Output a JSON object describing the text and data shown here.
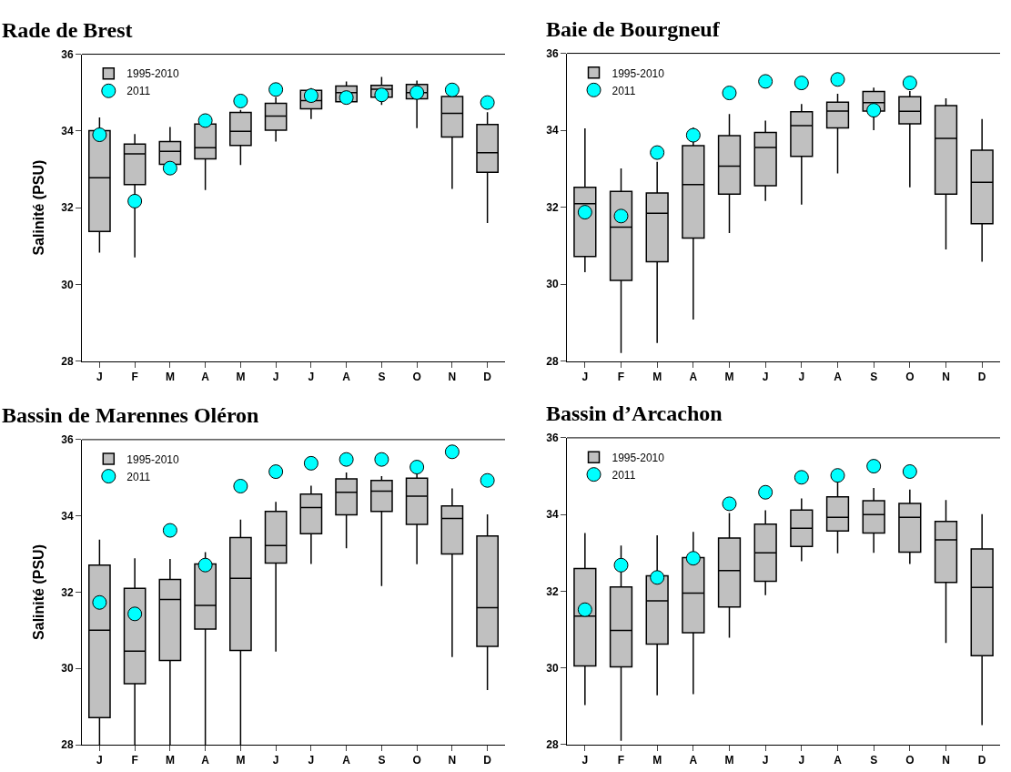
{
  "chart_data": [
    {
      "type": "box",
      "title": "Rade de Brest",
      "ylabel": "Salinité (PSU)",
      "categories": [
        "J",
        "F",
        "M",
        "A",
        "M",
        "J",
        "J",
        "A",
        "S",
        "O",
        "N",
        "D"
      ],
      "ylim": [
        28,
        36
      ],
      "yticks": [
        28,
        30,
        32,
        34,
        36
      ],
      "legend": "top left",
      "series": [
        {
          "name": "1995-2010",
          "color": "#c0c0c0",
          "boxes": [
            {
              "low": 30.83,
              "q1": 31.38,
              "median": 32.78,
              "q3": 34.01,
              "high": 34.35
            },
            {
              "low": 30.7,
              "q1": 32.6,
              "median": 33.4,
              "q3": 33.66,
              "high": 33.92
            },
            {
              "low": 33.13,
              "q1": 33.13,
              "median": 33.47,
              "q3": 33.72,
              "high": 34.1
            },
            {
              "low": 32.46,
              "q1": 33.27,
              "median": 33.56,
              "q3": 34.18,
              "high": 34.27
            },
            {
              "low": 33.11,
              "q1": 33.62,
              "median": 33.99,
              "q3": 34.48,
              "high": 34.55
            },
            {
              "low": 33.72,
              "q1": 34.02,
              "median": 34.39,
              "q3": 34.72,
              "high": 34.88
            },
            {
              "low": 34.31,
              "q1": 34.58,
              "median": 34.79,
              "q3": 35.06,
              "high": 35.12
            },
            {
              "low": 34.76,
              "q1": 34.76,
              "median": 35.0,
              "q3": 35.17,
              "high": 35.29
            },
            {
              "low": 34.68,
              "q1": 34.88,
              "median": 35.09,
              "q3": 35.19,
              "high": 35.41
            },
            {
              "low": 34.07,
              "q1": 34.84,
              "median": 35.0,
              "q3": 35.21,
              "high": 35.31
            },
            {
              "low": 32.49,
              "q1": 33.84,
              "median": 34.46,
              "q3": 34.9,
              "high": 34.9
            },
            {
              "low": 31.6,
              "q1": 32.92,
              "median": 33.43,
              "q3": 34.17,
              "high": 34.49
            }
          ]
        },
        {
          "name": "2011",
          "type": "scatter",
          "marker": "circle",
          "color": "#00ffff",
          "values": [
            33.9,
            32.17,
            33.03,
            34.27,
            34.78,
            35.08,
            34.92,
            34.87,
            34.94,
            35.0,
            35.07,
            34.74
          ]
        }
      ]
    },
    {
      "type": "box",
      "title": "Baie de Bourgneuf",
      "categories": [
        "J",
        "F",
        "M",
        "A",
        "M",
        "J",
        "J",
        "A",
        "S",
        "O",
        "N",
        "D"
      ],
      "ylim": [
        28,
        36
      ],
      "yticks": [
        28,
        30,
        32,
        34,
        36
      ],
      "legend": "top left",
      "series": [
        {
          "name": "1995-2010",
          "color": "#c0c0c0",
          "boxes": [
            {
              "low": 30.31,
              "q1": 30.72,
              "median": 32.09,
              "q3": 32.52,
              "high": 34.05
            },
            {
              "low": 28.21,
              "q1": 30.1,
              "median": 31.48,
              "q3": 32.41,
              "high": 33.01
            },
            {
              "low": 28.47,
              "q1": 30.58,
              "median": 31.84,
              "q3": 32.37,
              "high": 33.18
            },
            {
              "low": 29.08,
              "q1": 31.2,
              "median": 32.59,
              "q3": 33.6,
              "high": 34.07
            },
            {
              "low": 31.33,
              "q1": 32.34,
              "median": 33.07,
              "q3": 33.86,
              "high": 34.42
            },
            {
              "low": 32.16,
              "q1": 32.56,
              "median": 33.55,
              "q3": 33.94,
              "high": 34.25
            },
            {
              "low": 32.07,
              "q1": 33.32,
              "median": 34.12,
              "q3": 34.48,
              "high": 34.68
            },
            {
              "low": 32.88,
              "q1": 34.06,
              "median": 34.5,
              "q3": 34.73,
              "high": 34.95
            },
            {
              "low": 34.0,
              "q1": 34.5,
              "median": 34.72,
              "q3": 35.01,
              "high": 35.11
            },
            {
              "low": 32.52,
              "q1": 34.17,
              "median": 34.49,
              "q3": 34.87,
              "high": 35.02
            },
            {
              "low": 30.9,
              "q1": 32.34,
              "median": 33.79,
              "q3": 34.64,
              "high": 34.83
            },
            {
              "low": 30.58,
              "q1": 31.57,
              "median": 32.65,
              "q3": 33.48,
              "high": 34.29
            }
          ]
        },
        {
          "name": "2011",
          "type": "scatter",
          "marker": "circle",
          "color": "#00ffff",
          "values": [
            31.87,
            31.77,
            33.42,
            33.87,
            34.97,
            35.27,
            35.23,
            35.32,
            34.52,
            35.23,
            null,
            null
          ]
        }
      ]
    },
    {
      "type": "box",
      "title": "Bassin de Marennes Oléron",
      "ylabel": "Salinité (PSU)",
      "categories": [
        "J",
        "F",
        "M",
        "A",
        "M",
        "J",
        "J",
        "A",
        "S",
        "O",
        "N",
        "D"
      ],
      "ylim": [
        28,
        36
      ],
      "yticks": [
        28,
        30,
        32,
        34,
        36
      ],
      "legend": "top left",
      "series": [
        {
          "name": "1995-2010",
          "color": "#c0c0c0",
          "boxes": [
            {
              "low": 28.0,
              "q1": 28.71,
              "median": 31.0,
              "q3": 32.71,
              "high": 33.38
            },
            {
              "low": 28.0,
              "q1": 29.6,
              "median": 30.45,
              "q3": 32.1,
              "high": 32.89
            },
            {
              "low": 28.0,
              "q1": 30.21,
              "median": 31.81,
              "q3": 32.33,
              "high": 32.87
            },
            {
              "low": 28.0,
              "q1": 31.03,
              "median": 31.65,
              "q3": 32.74,
              "high": 33.05
            },
            {
              "low": 28.0,
              "q1": 30.47,
              "median": 32.36,
              "q3": 33.43,
              "high": 33.9
            },
            {
              "low": 30.44,
              "q1": 32.76,
              "median": 33.22,
              "q3": 34.12,
              "high": 34.37
            },
            {
              "low": 32.74,
              "q1": 33.53,
              "median": 34.22,
              "q3": 34.57,
              "high": 34.79
            },
            {
              "low": 33.15,
              "q1": 34.03,
              "median": 34.62,
              "q3": 34.97,
              "high": 35.14
            },
            {
              "low": 32.16,
              "q1": 34.12,
              "median": 34.65,
              "q3": 34.93,
              "high": 35.04
            },
            {
              "low": 32.73,
              "q1": 33.78,
              "median": 34.52,
              "q3": 34.99,
              "high": 35.09
            },
            {
              "low": 30.3,
              "q1": 33.0,
              "median": 33.93,
              "q3": 34.26,
              "high": 34.72
            },
            {
              "low": 29.43,
              "q1": 30.58,
              "median": 31.59,
              "q3": 33.47,
              "high": 34.04
            }
          ]
        },
        {
          "name": "2011",
          "type": "scatter",
          "marker": "circle",
          "color": "#00ffff",
          "values": [
            31.73,
            31.43,
            33.62,
            32.71,
            34.78,
            35.16,
            35.38,
            35.48,
            35.48,
            35.28,
            35.68,
            34.93
          ]
        }
      ]
    },
    {
      "type": "box",
      "title": "Bassin d’Arcachon",
      "categories": [
        "J",
        "F",
        "M",
        "A",
        "M",
        "J",
        "J",
        "A",
        "S",
        "O",
        "N",
        "D"
      ],
      "ylim": [
        28,
        36
      ],
      "yticks": [
        28,
        30,
        32,
        34,
        36
      ],
      "legend": "top left",
      "series": [
        {
          "name": "1995-2010",
          "color": "#c0c0c0",
          "boxes": [
            {
              "low": 29.03,
              "q1": 30.05,
              "median": 31.35,
              "q3": 32.59,
              "high": 33.52
            },
            {
              "low": 28.1,
              "q1": 30.03,
              "median": 30.98,
              "q3": 32.11,
              "high": 33.19
            },
            {
              "low": 29.29,
              "q1": 30.62,
              "median": 31.75,
              "q3": 32.4,
              "high": 33.46
            },
            {
              "low": 29.32,
              "q1": 30.92,
              "median": 31.95,
              "q3": 32.88,
              "high": 33.55
            },
            {
              "low": 30.79,
              "q1": 31.59,
              "median": 32.54,
              "q3": 33.39,
              "high": 34.04
            },
            {
              "low": 31.9,
              "q1": 32.26,
              "median": 33.0,
              "q3": 33.75,
              "high": 34.11
            },
            {
              "low": 32.78,
              "q1": 33.17,
              "median": 33.64,
              "q3": 34.12,
              "high": 34.42
            },
            {
              "low": 32.99,
              "q1": 33.57,
              "median": 33.93,
              "q3": 34.46,
              "high": 34.86
            },
            {
              "low": 33.0,
              "q1": 33.52,
              "median": 34.0,
              "q3": 34.36,
              "high": 34.69
            },
            {
              "low": 32.71,
              "q1": 33.02,
              "median": 33.93,
              "q3": 34.29,
              "high": 34.65
            },
            {
              "low": 30.65,
              "q1": 32.23,
              "median": 33.34,
              "q3": 33.82,
              "high": 34.38
            },
            {
              "low": 28.51,
              "q1": 30.32,
              "median": 32.1,
              "q3": 33.1,
              "high": 34.01
            }
          ]
        },
        {
          "name": "2011",
          "type": "scatter",
          "marker": "circle",
          "color": "#00ffff",
          "values": [
            31.52,
            32.68,
            32.36,
            32.86,
            34.28,
            34.58,
            34.97,
            35.02,
            35.26,
            35.12,
            null,
            null
          ]
        }
      ]
    }
  ]
}
